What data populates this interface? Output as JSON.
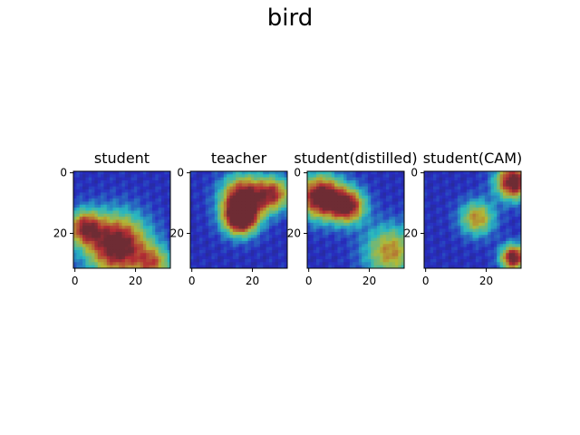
{
  "figure": {
    "title": "bird"
  },
  "chart_data": {
    "type": "heatmap",
    "title": "bird",
    "panels": [
      {
        "title": "student",
        "xticks": [
          "0",
          "20"
        ],
        "yticks": [
          "0",
          "20"
        ],
        "xlim": [
          -0.5,
          31.5
        ],
        "ylim": [
          31.5,
          -0.5
        ],
        "image_size": [
          32,
          32
        ],
        "hotspots": [
          {
            "x": 14,
            "y": 24,
            "intensity": 1.0,
            "spread": 7
          },
          {
            "x": 3,
            "y": 18,
            "intensity": 0.7,
            "spread": 4
          },
          {
            "x": 26,
            "y": 30,
            "intensity": 0.55,
            "spread": 4
          }
        ]
      },
      {
        "title": "teacher",
        "xticks": [
          "0",
          "20"
        ],
        "yticks": [
          "0",
          "20"
        ],
        "xlim": [
          -0.5,
          31.5
        ],
        "ylim": [
          31.5,
          -0.5
        ],
        "image_size": [
          32,
          32
        ],
        "hotspots": [
          {
            "x": 17,
            "y": 8,
            "intensity": 0.9,
            "spread": 5
          },
          {
            "x": 16,
            "y": 15,
            "intensity": 1.0,
            "spread": 4
          },
          {
            "x": 27,
            "y": 7,
            "intensity": 0.7,
            "spread": 4
          }
        ]
      },
      {
        "title": "student(distilled)",
        "xticks": [
          "0",
          "20"
        ],
        "yticks": [
          "0",
          "20"
        ],
        "xlim": [
          -0.5,
          31.5
        ],
        "ylim": [
          31.5,
          -0.5
        ],
        "image_size": [
          32,
          32
        ],
        "hotspots": [
          {
            "x": 4,
            "y": 8,
            "intensity": 1.0,
            "spread": 5
          },
          {
            "x": 13,
            "y": 11,
            "intensity": 0.85,
            "spread": 4
          },
          {
            "x": 27,
            "y": 26,
            "intensity": 0.6,
            "spread": 6
          }
        ]
      },
      {
        "title": "student(CAM)",
        "xticks": [
          "0",
          "20"
        ],
        "yticks": [
          "0",
          "20"
        ],
        "xlim": [
          -0.5,
          31.5
        ],
        "ylim": [
          31.5,
          -0.5
        ],
        "image_size": [
          32,
          32
        ],
        "hotspots": [
          {
            "x": 29,
            "y": 3,
            "intensity": 1.0,
            "spread": 4
          },
          {
            "x": 29,
            "y": 28,
            "intensity": 0.95,
            "spread": 3
          },
          {
            "x": 17,
            "y": 15,
            "intensity": 0.6,
            "spread": 4
          }
        ]
      }
    ]
  },
  "colors": {
    "cold": "#2b3f8f",
    "cool": "#3fc7d6",
    "mid": "#d8e84a",
    "warm": "#f2a23a",
    "hot": "#b3201a"
  }
}
